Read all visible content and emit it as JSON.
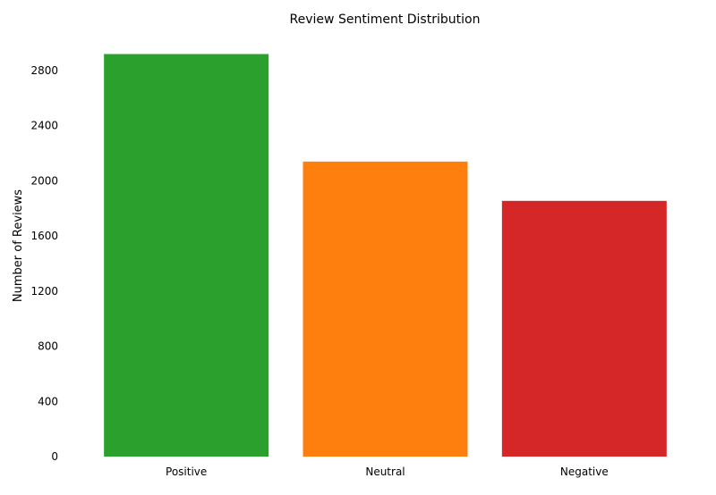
{
  "chart_data": {
    "type": "bar",
    "title": "Review Sentiment Distribution",
    "xlabel": "",
    "ylabel": "Number of Reviews",
    "categories": [
      "Positive",
      "Neutral",
      "Negative"
    ],
    "values": [
      2920,
      2140,
      1855
    ],
    "colors": [
      "#2ca02c",
      "#ff7f0e",
      "#d62728"
    ],
    "y_ticks": [
      0,
      400,
      800,
      1200,
      1600,
      2000,
      2400,
      2800
    ],
    "ylim": [
      0,
      3000
    ],
    "grid": false,
    "legend": "none"
  }
}
